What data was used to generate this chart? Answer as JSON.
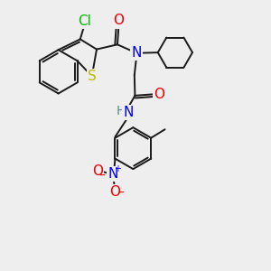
{
  "background_color": "#eeeeee",
  "bond_color": "#1a1a1a",
  "atom_colors": {
    "Cl": "#00bb00",
    "S": "#bbbb00",
    "N": "#0000ee",
    "O": "#ee0000",
    "H": "#558888",
    "C": "#1a1a1a"
  },
  "lw": 1.4
}
